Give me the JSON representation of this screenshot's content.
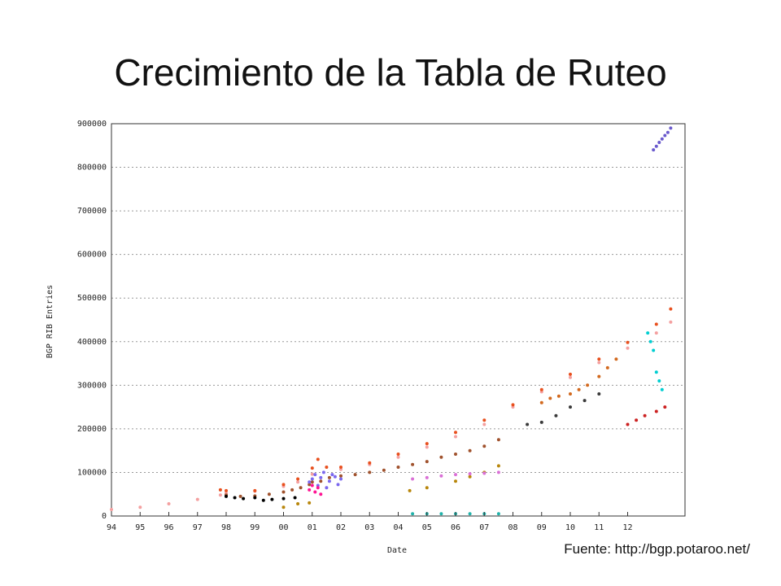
{
  "slide": {
    "title": "Crecimiento de la Tabla de Ruteo",
    "source": "Fuente: http://bgp.potaroo.net/"
  },
  "chart_data": {
    "type": "scatter",
    "title": "",
    "xlabel": "Date",
    "ylabel": "BGP RIB Entries",
    "xlim": [
      1994,
      2014
    ],
    "ylim": [
      0,
      900000
    ],
    "grid": true,
    "x_ticks": [
      "94",
      "95",
      "96",
      "97",
      "98",
      "99",
      "00",
      "01",
      "02",
      "03",
      "04",
      "05",
      "06",
      "07",
      "08",
      "09",
      "10",
      "11",
      "12"
    ],
    "y_ticks": [
      "0",
      "100000",
      "200000",
      "300000",
      "400000",
      "500000",
      "600000",
      "700000",
      "800000",
      "900000"
    ],
    "colors": [
      "#f4a0a0",
      "#e8501e",
      "#a0522d",
      "#b8860b",
      "#7b68ee",
      "#000000",
      "#20b2aa",
      "#da70d6",
      "#d2691e",
      "#cc2222",
      "#6a5acd",
      "#00ced1",
      "#3a3a3a",
      "#ff1493"
    ],
    "series": [
      {
        "x": [
          1994.0,
          1995.0,
          1996.0,
          1997.0,
          1997.8,
          1998.0,
          1999.0,
          2000.0,
          2000.5,
          2001.0,
          2002.0,
          2003.0,
          2004.0,
          2005.0,
          2006.0,
          2007.0,
          2008.0,
          2009.0,
          2010.0,
          2011.0,
          2012.0,
          2013.0,
          2013.5
        ],
        "y": [
          15000,
          20000,
          28000,
          38000,
          48000,
          52000,
          57000,
          68000,
          78000,
          96000,
          107000,
          118000,
          135000,
          158000,
          182000,
          210000,
          250000,
          285000,
          318000,
          352000,
          385000,
          420000,
          445000
        ]
      },
      {
        "x": [
          1997.8,
          1998.0,
          1999.0,
          2000.0,
          2000.5,
          2001.0,
          2001.2,
          2001.5,
          2002.0,
          2003.0,
          2004.0,
          2005.0,
          2006.0,
          2007.0,
          2008.0,
          2009.0,
          2010.0,
          2011.0,
          2012.0,
          2013.0,
          2013.5
        ],
        "y": [
          60000,
          58000,
          58000,
          72000,
          85000,
          110000,
          130000,
          112000,
          112000,
          122000,
          142000,
          166000,
          192000,
          220000,
          255000,
          290000,
          325000,
          360000,
          398000,
          440000,
          475000
        ]
      },
      {
        "x": [
          1998.0,
          1998.5,
          1999.0,
          1999.5,
          2000.0,
          2000.3,
          2000.6,
          2000.9,
          2001.0,
          2001.3,
          2001.6,
          2002.0,
          2002.5,
          2003.0,
          2003.5,
          2004.0,
          2004.5,
          2005.0,
          2005.5,
          2006.0,
          2006.5,
          2007.0,
          2007.5
        ],
        "y": [
          48000,
          45000,
          46000,
          50000,
          55000,
          60000,
          65000,
          72000,
          78000,
          80000,
          88000,
          92000,
          95000,
          100000,
          105000,
          112000,
          118000,
          125000,
          135000,
          142000,
          150000,
          160000,
          175000
        ]
      },
      {
        "x": [
          2000.0,
          2000.5,
          2000.9,
          2004.4,
          2005.0,
          2006.0,
          2006.5,
          2007.0,
          2007.5
        ],
        "y": [
          20000,
          28000,
          30000,
          58000,
          65000,
          80000,
          90000,
          100000,
          115000
        ]
      },
      {
        "x": [
          2000.9,
          2001.0,
          2001.1,
          2001.2,
          2001.3,
          2001.4,
          2001.5,
          2001.6,
          2001.7,
          2001.8,
          2001.9,
          2002.0
        ],
        "y": [
          78000,
          85000,
          95000,
          70000,
          88000,
          100000,
          65000,
          80000,
          95000,
          90000,
          72000,
          85000
        ]
      },
      {
        "x": [
          1998.0,
          1998.3,
          1998.6,
          1999.0,
          1999.3,
          1999.6,
          2000.0,
          2000.4
        ],
        "y": [
          45000,
          42000,
          40000,
          42000,
          36000,
          38000,
          40000,
          42000
        ]
      },
      {
        "x": [
          2004.5,
          2005.0,
          2005.5,
          2006.0,
          2006.5,
          2007.0,
          2007.5
        ],
        "y": [
          5000,
          5000,
          5000,
          5000,
          5000,
          5000,
          5000
        ]
      },
      {
        "x": [
          2004.5,
          2005.0,
          2005.5,
          2006.0,
          2006.5,
          2007.0,
          2007.5
        ],
        "y": [
          85000,
          88000,
          92000,
          95000,
          97000,
          98000,
          100000
        ]
      },
      {
        "x": [
          2009.0,
          2009.3,
          2009.6,
          2010.0,
          2010.3,
          2010.6,
          2011.0,
          2011.3,
          2011.6
        ],
        "y": [
          260000,
          270000,
          275000,
          280000,
          290000,
          300000,
          320000,
          340000,
          360000
        ]
      },
      {
        "x": [
          2012.0,
          2012.3,
          2012.6,
          2013.0,
          2013.3
        ],
        "y": [
          210000,
          220000,
          230000,
          240000,
          250000
        ]
      },
      {
        "x": [
          2012.9,
          2013.0,
          2013.1,
          2013.2,
          2013.3,
          2013.4,
          2013.5
        ],
        "y": [
          840000,
          848000,
          857000,
          865000,
          873000,
          880000,
          890000
        ]
      },
      {
        "x": [
          2012.7,
          2012.8,
          2012.9,
          2013.0,
          2013.1,
          2013.2
        ],
        "y": [
          420000,
          400000,
          380000,
          330000,
          310000,
          290000
        ]
      },
      {
        "x": [
          2008.5,
          2009.0,
          2009.5,
          2010.0,
          2010.5,
          2011.0
        ],
        "y": [
          210000,
          215000,
          230000,
          250000,
          265000,
          280000
        ]
      },
      {
        "x": [
          2000.9,
          2001.0,
          2001.1,
          2001.2,
          2001.3
        ],
        "y": [
          60000,
          70000,
          55000,
          65000,
          50000
        ]
      }
    ]
  }
}
